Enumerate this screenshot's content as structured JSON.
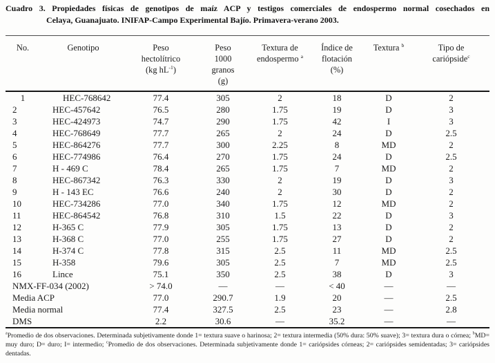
{
  "title": {
    "line1": "Cuadro 3. Propiedades físicas de genotipos de maíz ACP y testigos comerciales de endospermo normal cosechados en",
    "line2": "Celaya, Guanajuato. INIFAP-Campo Experimental Bajío. Primavera-verano 2003."
  },
  "table": {
    "columns": [
      {
        "id": "no",
        "header": [
          [
            {
              "t": "No."
            }
          ]
        ]
      },
      {
        "id": "genotipo",
        "header": [
          [
            {
              "t": "Genotipo"
            }
          ]
        ]
      },
      {
        "id": "peso-hectolitrico",
        "header": [
          [
            {
              "t": "Peso"
            }
          ],
          [
            {
              "t": "hectolítrico"
            }
          ],
          [
            {
              "t": "(kg hL"
            },
            {
              "t": "-1",
              "sup": true
            },
            {
              "t": ")"
            }
          ]
        ]
      },
      {
        "id": "peso-1000-granos",
        "header": [
          [
            {
              "t": "Peso"
            }
          ],
          [
            {
              "t": "1000"
            }
          ],
          [
            {
              "t": "granos"
            }
          ],
          [
            {
              "t": "(g)"
            }
          ]
        ]
      },
      {
        "id": "textura-endospermo",
        "header": [
          [
            {
              "t": "Textura de"
            }
          ],
          [
            {
              "t": "endospermo "
            },
            {
              "t": "a",
              "sup": true
            }
          ]
        ]
      },
      {
        "id": "indice-flotacion",
        "header": [
          [
            {
              "t": "Índice de"
            }
          ],
          [
            {
              "t": "flotación"
            }
          ],
          [
            {
              "t": "(%)"
            }
          ]
        ]
      },
      {
        "id": "textura",
        "header": [
          [
            {
              "t": "Textura "
            },
            {
              "t": "b",
              "sup": true
            }
          ]
        ]
      },
      {
        "id": "tipo-cariopside",
        "header": [
          [
            {
              "t": "Tipo de"
            }
          ],
          [
            {
              "t": "cariópside"
            },
            {
              "t": "c",
              "sup": true
            }
          ]
        ]
      }
    ],
    "rows": [
      [
        "1",
        "HEC-768642",
        "77.4",
        "305",
        "2",
        "18",
        "D",
        "2"
      ],
      [
        "2",
        "HEC-457642",
        "76.5",
        "280",
        "1.75",
        "19",
        "D",
        "3"
      ],
      [
        "3",
        "HEC-424973",
        "74.7",
        "290",
        "1.75",
        "42",
        "I",
        "3"
      ],
      [
        "4",
        "HEC-768649",
        "77.7",
        "265",
        "2",
        "24",
        "D",
        "2.5"
      ],
      [
        "5",
        "HEC-864276",
        "77.7",
        "300",
        "2.25",
        "8",
        "MD",
        "2"
      ],
      [
        "6",
        "HEC-774986",
        "76.4",
        "270",
        "1.75",
        "24",
        "D",
        "2.5"
      ],
      [
        "7",
        "H - 469 C",
        "78.4",
        "265",
        "1.75",
        "7",
        "MD",
        "2"
      ],
      [
        "8",
        "HEC-867342",
        "76.3",
        "330",
        "2",
        "19",
        "D",
        "3"
      ],
      [
        "9",
        "H - 143 EC",
        "76.6",
        "240",
        "2",
        "30",
        "D",
        "2"
      ],
      [
        "10",
        "HEC-734286",
        "77.0",
        "340",
        "1.75",
        "12",
        "MD",
        "2"
      ],
      [
        "11",
        "HEC-864542",
        "76.8",
        "310",
        "1.5",
        "22",
        "D",
        "3"
      ],
      [
        "12",
        "H-365 C",
        "77.9",
        "305",
        "1.75",
        "13",
        "D",
        "2"
      ],
      [
        "13",
        "H-368 C",
        "77.0",
        "255",
        "1.75",
        "27",
        "D",
        "2"
      ],
      [
        "14",
        "H-374 C",
        "77.8",
        "315",
        "2.5",
        "11",
        "MD",
        "2.5"
      ],
      [
        "15",
        "H-358",
        "79.6",
        "305",
        "2.5",
        "7",
        "MD",
        "2.5"
      ],
      [
        "16",
        "Lince",
        "75.1",
        "350",
        "2.5",
        "38",
        "D",
        "3"
      ]
    ],
    "summary_rows": [
      {
        "label": "NMX-FF-034 (2002)",
        "values": [
          "> 74.0",
          "—",
          "—",
          "< 40",
          "—",
          "—"
        ]
      },
      {
        "label": "Media ACP",
        "values": [
          "77.0",
          "290.7",
          "1.9",
          "20",
          "—",
          "2.5"
        ]
      },
      {
        "label": "Media normal",
        "values": [
          "77.4",
          "327.5",
          "2.5",
          "23",
          "—",
          "2.8"
        ]
      },
      {
        "label": "DMS",
        "values": [
          "2.2",
          "30.6",
          "—",
          "35.2",
          "—",
          "—"
        ]
      }
    ]
  },
  "footnotes": {
    "segments": [
      {
        "t": "a",
        "sup": true
      },
      {
        "t": "Promedio de dos observaciones. Determinada subjetivamente donde 1= textura suave o harinosa; 2= textura intermedia (50% dura: 50% suave); 3= textura dura o córnea; "
      },
      {
        "t": "b",
        "sup": true
      },
      {
        "t": "MD= muy duro; D= duro; I= intermedio; "
      },
      {
        "t": "c",
        "sup": true
      },
      {
        "t": "Promedio de dos observaciones. Determinada subjetivamente donde 1= cariópsides córneas; 2= cariópsides semidentadas; 3= cariópsides dentadas."
      }
    ]
  },
  "colors": {
    "background": "#fdfdfc",
    "text": "#1c1c1c",
    "rule": "#161616"
  }
}
